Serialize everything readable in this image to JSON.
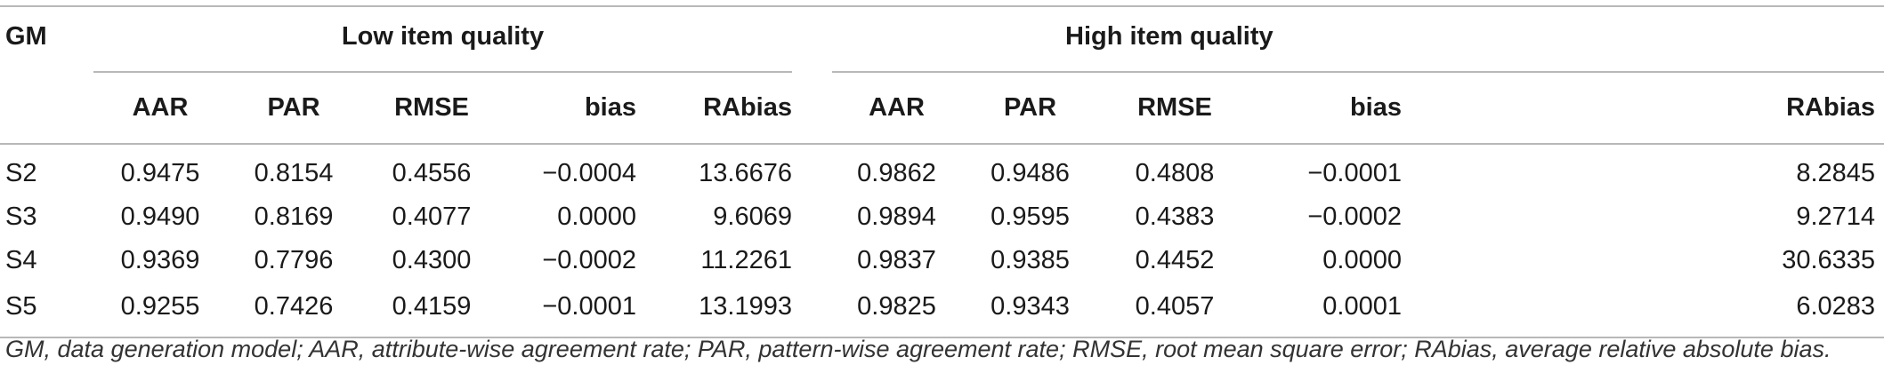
{
  "table": {
    "gm_header": "GM",
    "groups": [
      {
        "label": "Low item quality"
      },
      {
        "label": "High item quality"
      }
    ],
    "columns": {
      "low": [
        "AAR",
        "PAR",
        "RMSE",
        "bias",
        "RAbias"
      ],
      "high": [
        "AAR",
        "PAR",
        "RMSE",
        "bias",
        "RAbias"
      ]
    },
    "rows": [
      {
        "gm": "S2",
        "low": [
          "0.9475",
          "0.8154",
          "0.4556",
          "−0.0004",
          "13.6676"
        ],
        "high": [
          "0.9862",
          "0.9486",
          "0.4808",
          "−0.0001",
          "8.2845"
        ]
      },
      {
        "gm": "S3",
        "low": [
          "0.9490",
          "0.8169",
          "0.4077",
          "0.0000",
          "9.6069"
        ],
        "high": [
          "0.9894",
          "0.9595",
          "0.4383",
          "−0.0002",
          "9.2714"
        ]
      },
      {
        "gm": "S4",
        "low": [
          "0.9369",
          "0.7796",
          "0.4300",
          "−0.0002",
          "11.2261"
        ],
        "high": [
          "0.9837",
          "0.9385",
          "0.4452",
          "0.0000",
          "30.6335"
        ]
      },
      {
        "gm": "S5",
        "low": [
          "0.9255",
          "0.7426",
          "0.4159",
          "−0.0001",
          "13.1993"
        ],
        "high": [
          "0.9825",
          "0.9343",
          "0.4057",
          "0.0001",
          "6.0283"
        ]
      }
    ]
  },
  "footnote": "GM, data generation model; AAR, attribute-wise agreement rate; PAR, pattern-wise agreement rate; RMSE, root mean square error; RAbias, average relative absolute bias."
}
